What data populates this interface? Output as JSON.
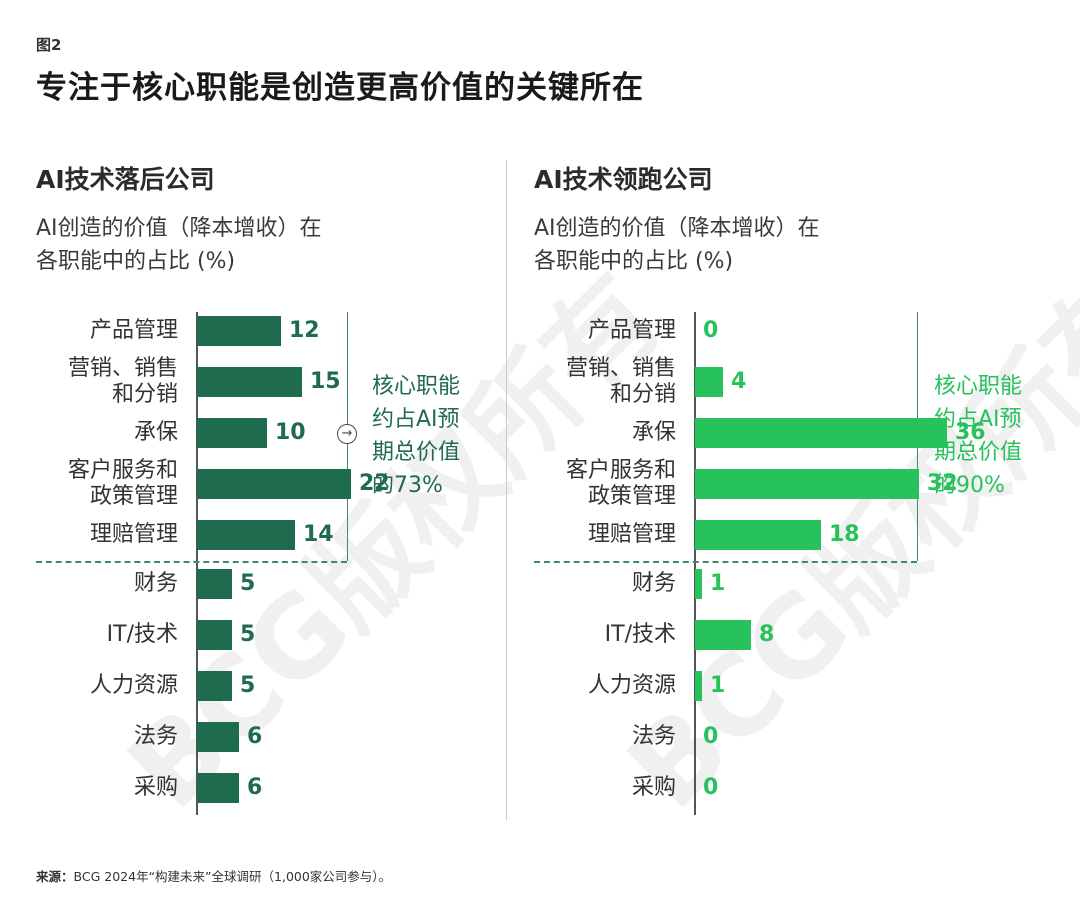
{
  "figure_label": "图2",
  "title": "专注于核心职能是创造更高价值的关键所在",
  "watermark": "BCG版权所有",
  "source_label": "来源：",
  "source_text": "BCG 2024年“构建未来”全球调研（1,000家公司参与）。",
  "colors": {
    "laggard": "#1e6b4e",
    "leader": "#27c25c"
  },
  "chart_data": [
    {
      "type": "bar",
      "orientation": "horizontal",
      "title": "AI技术落后公司",
      "subtitle": "AI创造的价值（降本增收）在\n各职能中的占比 (%)",
      "categories": [
        "产品管理",
        "营销、销售\n和分销",
        "承保",
        "客户服务和\n政策管理",
        "理赔管理",
        "财务",
        "IT/技术",
        "人力资源",
        "法务",
        "采购"
      ],
      "values": [
        12,
        15,
        10,
        22,
        14,
        5,
        5,
        5,
        6,
        6
      ],
      "core_count": 5,
      "annotation": "核心职能\n约占AI预\n期总价值\n的73%"
    },
    {
      "type": "bar",
      "orientation": "horizontal",
      "title": "AI技术领跑公司",
      "subtitle": "AI创造的价值（降本增收）在\n各职能中的占比 (%)",
      "categories": [
        "产品管理",
        "营销、销售\n和分销",
        "承保",
        "客户服务和\n政策管理",
        "理赔管理",
        "财务",
        "IT/技术",
        "人力资源",
        "法务",
        "采购"
      ],
      "values": [
        0,
        4,
        36,
        32,
        18,
        1,
        8,
        1,
        0,
        0
      ],
      "core_count": 5,
      "annotation": "核心职能\n约占AI预\n期总价值\n的90%"
    }
  ]
}
